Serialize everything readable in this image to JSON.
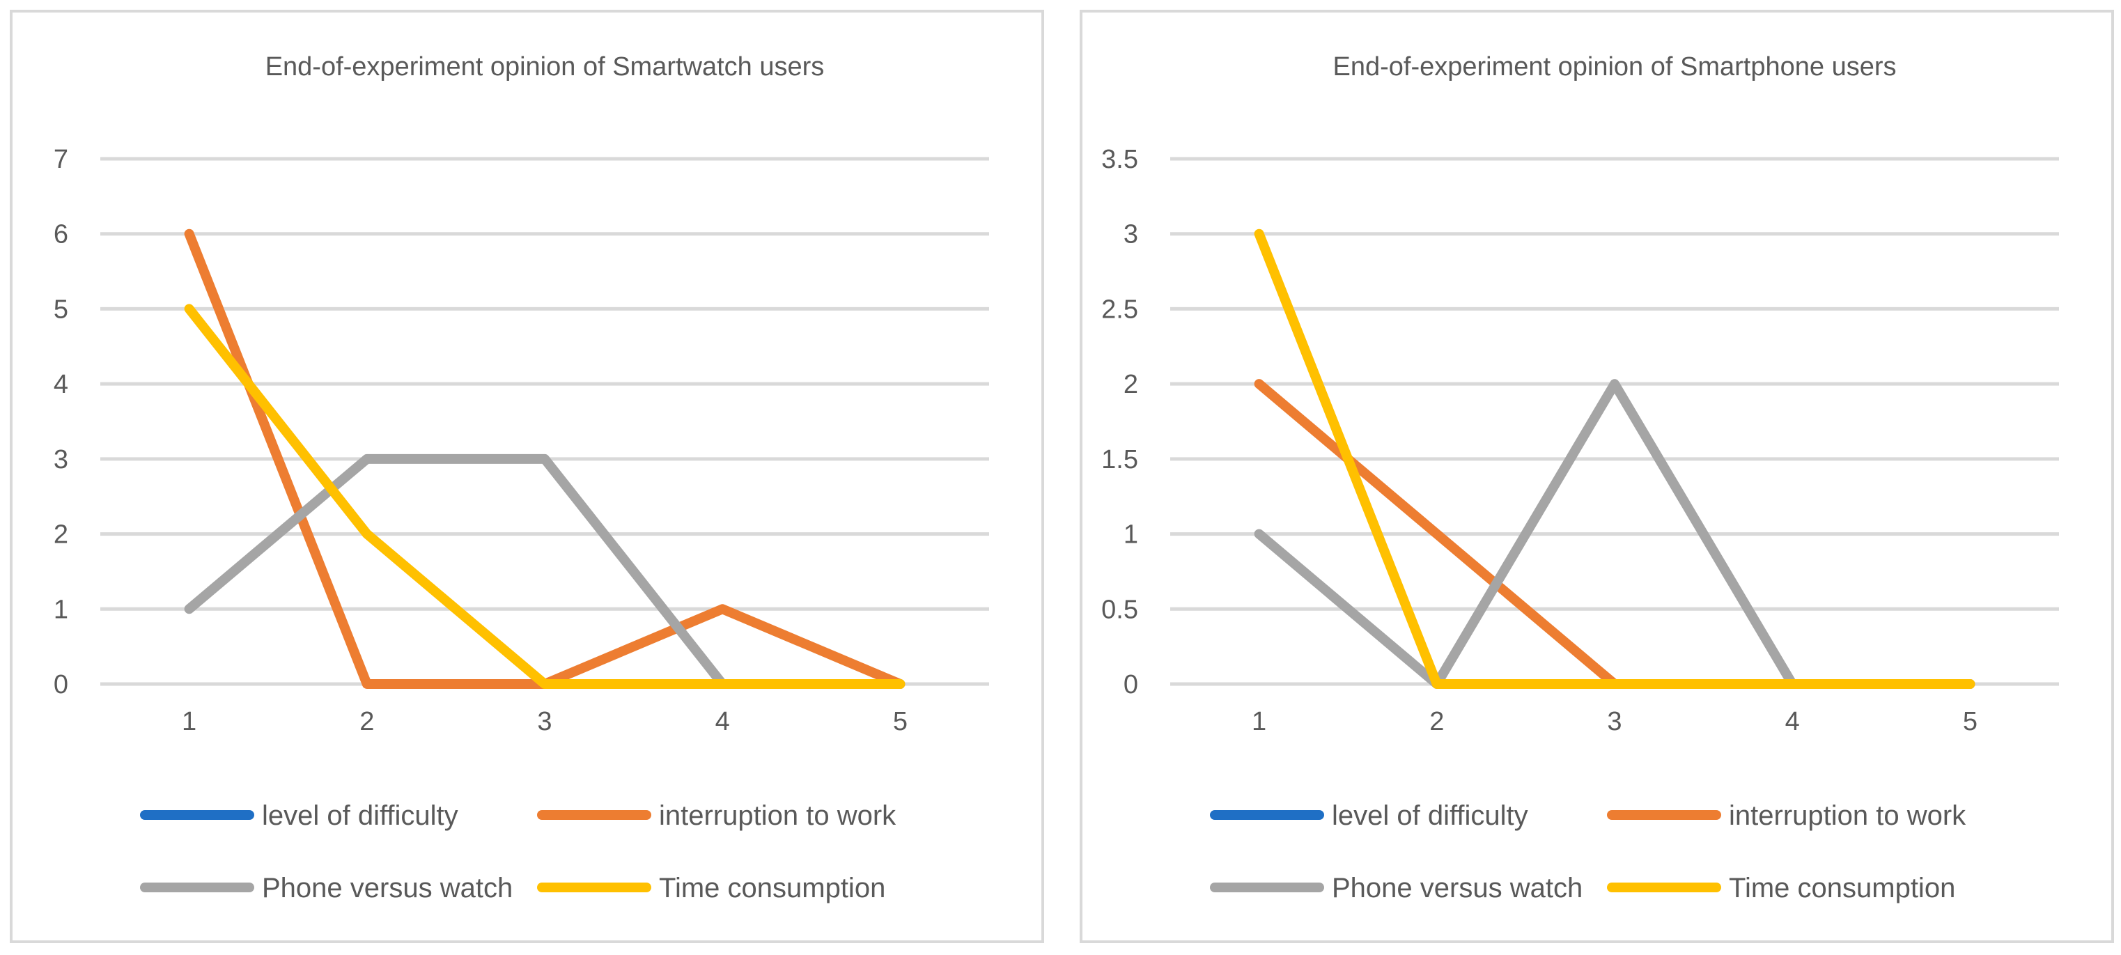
{
  "chart_data": [
    {
      "type": "line",
      "title": "End-of-experiment opinion of Smartwatch users",
      "xlabel": "",
      "ylabel": "",
      "categories": [
        "1",
        "2",
        "3",
        "4",
        "5"
      ],
      "ylim": [
        0,
        7
      ],
      "yticks": [
        "0",
        "1",
        "2",
        "3",
        "4",
        "5",
        "6",
        "7"
      ],
      "grid": true,
      "legend_position": "bottom",
      "series": [
        {
          "name": "level of difficulty",
          "color": "#1f6fc5",
          "values": [
            null,
            null,
            null,
            null,
            null
          ]
        },
        {
          "name": "interruption to work",
          "color": "#ed7d31",
          "values": [
            6,
            0,
            0,
            1,
            0
          ]
        },
        {
          "name": "Phone versus watch",
          "color": "#a5a5a5",
          "values": [
            1,
            3,
            3,
            0,
            0
          ]
        },
        {
          "name": "Time consumption",
          "color": "#ffc000",
          "values": [
            5,
            2,
            0,
            0,
            0
          ]
        }
      ]
    },
    {
      "type": "line",
      "title": "End-of-experiment opinion of Smartphone users",
      "xlabel": "",
      "ylabel": "",
      "categories": [
        "1",
        "2",
        "3",
        "4",
        "5"
      ],
      "ylim": [
        0,
        3.5
      ],
      "yticks": [
        "0",
        "0.5",
        "1",
        "1.5",
        "2",
        "2.5",
        "3",
        "3.5"
      ],
      "grid": true,
      "legend_position": "bottom",
      "series": [
        {
          "name": "level of difficulty",
          "color": "#1f6fc5",
          "values": [
            null,
            null,
            null,
            null,
            null
          ]
        },
        {
          "name": "interruption to work",
          "color": "#ed7d31",
          "values": [
            2,
            1,
            0,
            0,
            0
          ]
        },
        {
          "name": "Phone versus watch",
          "color": "#a5a5a5",
          "values": [
            1,
            0,
            2,
            0,
            0
          ]
        },
        {
          "name": "Time consumption",
          "color": "#ffc000",
          "values": [
            3,
            0,
            0,
            0,
            0
          ]
        }
      ]
    }
  ]
}
